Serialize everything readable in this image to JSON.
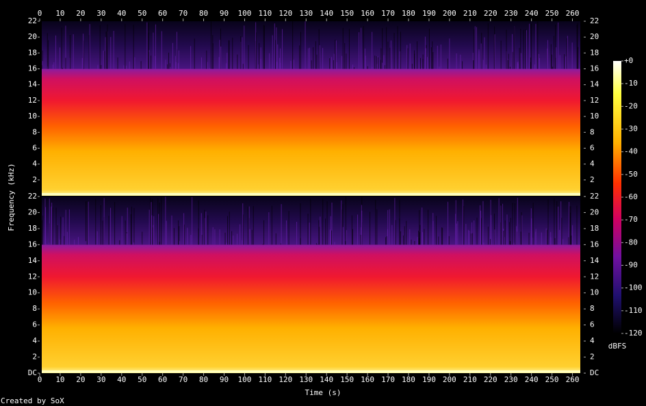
{
  "chart_data": {
    "type": "spectrogram",
    "x_label": "Time (s)",
    "y_label": "Frequency (kHz)",
    "footer": "Created by SoX",
    "xlim": [
      0,
      265.5
    ],
    "xticks": [
      0,
      10,
      20,
      30,
      40,
      50,
      60,
      70,
      80,
      90,
      100,
      110,
      120,
      130,
      140,
      150,
      160,
      170,
      180,
      190,
      200,
      210,
      220,
      230,
      240,
      250,
      260
    ],
    "channels": [
      {
        "ylim": [
          0,
          22
        ],
        "yticks": [
          2,
          4,
          6,
          8,
          10,
          12,
          14,
          16,
          18,
          20,
          22
        ]
      },
      {
        "ylim": [
          0,
          22
        ],
        "yticks": [
          {
            "value": 0,
            "label": "DC"
          },
          2,
          4,
          6,
          8,
          10,
          12,
          14,
          16,
          18,
          20,
          22
        ]
      }
    ],
    "colorbar": {
      "label": "dBFS",
      "lim": [
        -120,
        0
      ],
      "ticks": [
        {
          "value": 0,
          "label": "+0"
        },
        -10,
        -20,
        -30,
        -40,
        -50,
        -60,
        -70,
        -80,
        -90,
        -100,
        -110,
        -120
      ]
    }
  }
}
